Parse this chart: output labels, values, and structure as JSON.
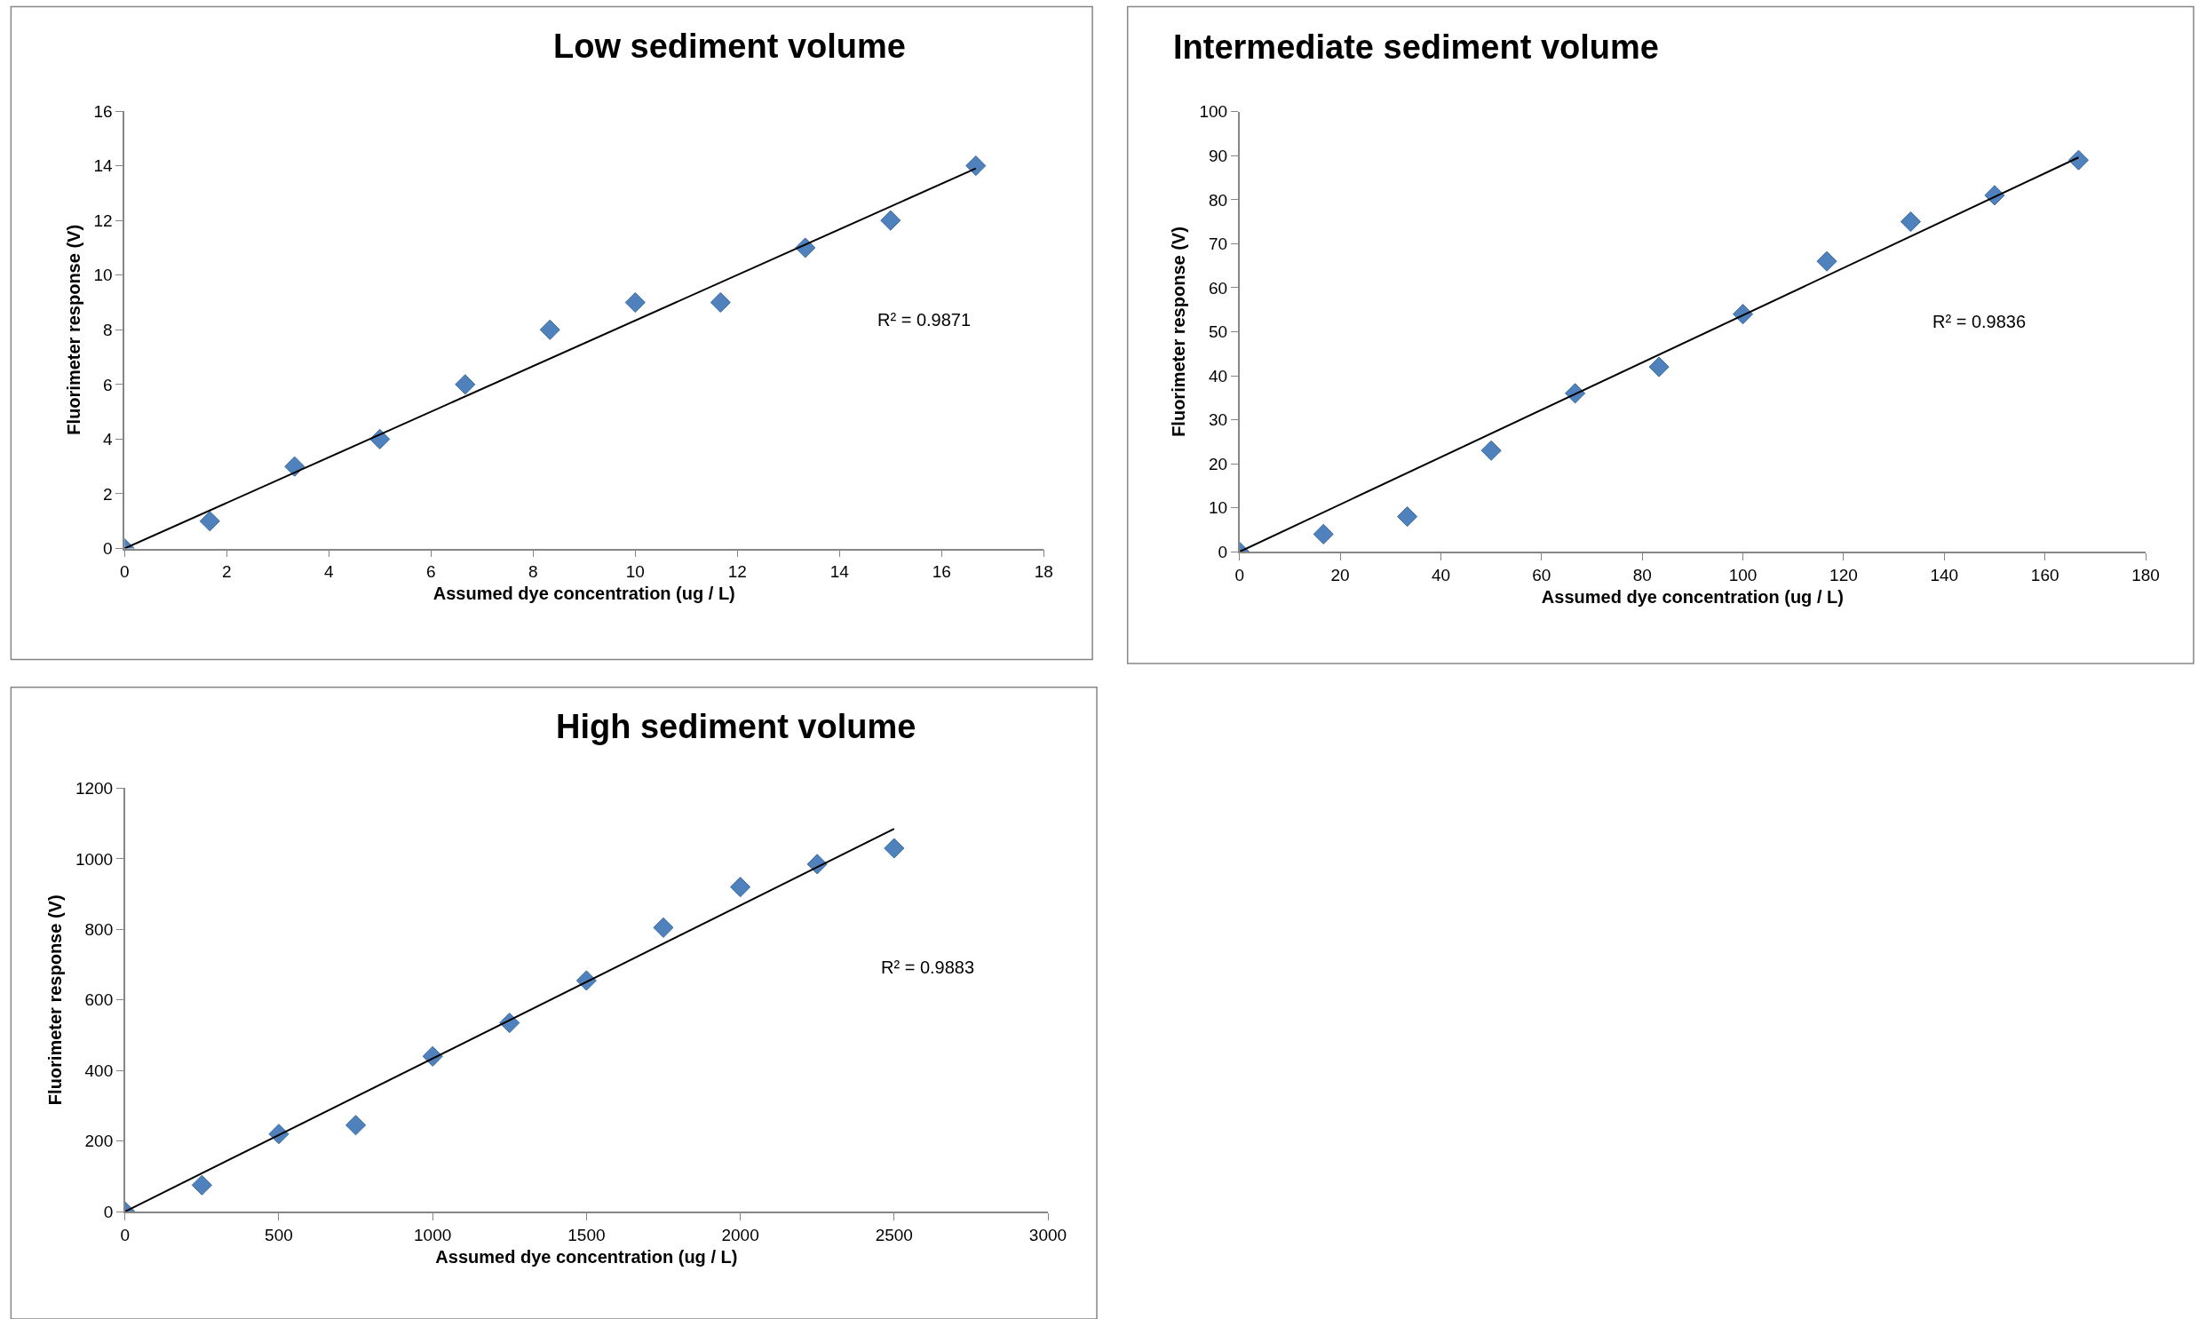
{
  "chart_data": [
    {
      "type": "scatter",
      "title": "Low sediment volume",
      "xlabel": "Assumed dye concentration (ug / L)",
      "ylabel": "Fluorimeter response (V)",
      "xlim": [
        0,
        18
      ],
      "xticks": [
        0,
        2,
        4,
        6,
        8,
        10,
        12,
        14,
        16,
        18
      ],
      "ylim": [
        0,
        16
      ],
      "yticks": [
        0,
        2,
        4,
        6,
        8,
        10,
        12,
        14,
        16
      ],
      "annotations": [
        "R² = 0.9871"
      ],
      "series": [
        {
          "color": "#4f81bd",
          "marker": "diamond",
          "x": [
            0,
            1.67,
            3.33,
            5,
            6.67,
            8.33,
            10,
            11.67,
            13.33,
            15,
            16.67
          ],
          "values": [
            0,
            1,
            3,
            4,
            6,
            8,
            9,
            9,
            11,
            12,
            14
          ]
        },
        {
          "type": "line",
          "color": "#000000",
          "x": [
            0,
            16.67
          ],
          "values": [
            0,
            13.9
          ]
        }
      ]
    },
    {
      "type": "scatter",
      "title": "Intermediate sediment volume",
      "xlabel": "Assumed dye concentration (ug / L)",
      "ylabel": "Fluorimeter response (V)",
      "xlim": [
        0,
        180
      ],
      "xticks": [
        0,
        20,
        40,
        60,
        80,
        100,
        120,
        140,
        160,
        180
      ],
      "ylim": [
        0,
        100
      ],
      "yticks": [
        0,
        10,
        20,
        30,
        40,
        50,
        60,
        70,
        80,
        90,
        100
      ],
      "annotations": [
        "R² = 0.9836"
      ],
      "series": [
        {
          "color": "#4f81bd",
          "marker": "diamond",
          "x": [
            0,
            16.67,
            33.33,
            50,
            66.67,
            83.33,
            100,
            116.67,
            133.33,
            150,
            166.67
          ],
          "values": [
            0,
            4,
            8,
            23,
            36,
            42,
            54,
            66,
            75,
            81,
            89
          ]
        },
        {
          "type": "line",
          "color": "#000000",
          "x": [
            0,
            166.67
          ],
          "values": [
            0,
            89.6
          ]
        }
      ]
    },
    {
      "type": "scatter",
      "title": "High sediment volume",
      "xlabel": "Assumed dye concentration (ug / L)",
      "ylabel": "Fluorimeter response (V)",
      "xlim": [
        0,
        3000
      ],
      "xticks": [
        0,
        500,
        1000,
        1500,
        2000,
        2500,
        3000
      ],
      "ylim": [
        0,
        1200
      ],
      "yticks": [
        0,
        200,
        400,
        600,
        800,
        1000,
        1200
      ],
      "annotations": [
        "R² = 0.9883"
      ],
      "series": [
        {
          "color": "#4f81bd",
          "marker": "diamond",
          "x": [
            0,
            250,
            500,
            750,
            1000,
            1250,
            1500,
            1750,
            2000,
            2250,
            2500
          ],
          "values": [
            0,
            75,
            220,
            245,
            440,
            535,
            655,
            805,
            920,
            985,
            1030
          ]
        },
        {
          "type": "line",
          "color": "#000000",
          "x": [
            0,
            2500
          ],
          "values": [
            0,
            1085
          ]
        }
      ]
    }
  ]
}
